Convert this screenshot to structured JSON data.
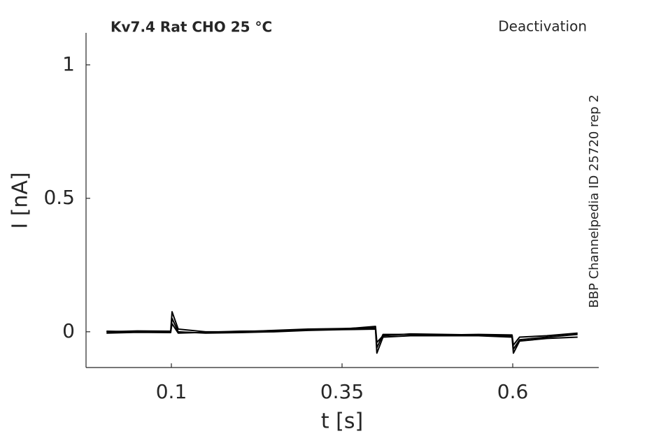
{
  "chart_data": {
    "type": "line",
    "title": "Kv7.4  Rat  CHO  25 °C",
    "subtitle": "Deactivation",
    "annotation": "BBP Channelpedia ID 25720 rep 2",
    "x_label": "t [s]",
    "y_label": "I [nA]",
    "x": [
      0.005,
      0.05,
      0.099,
      0.101,
      0.11,
      0.15,
      0.2,
      0.25,
      0.3,
      0.35,
      0.399,
      0.401,
      0.41,
      0.45,
      0.5,
      0.55,
      0.599,
      0.601,
      0.61,
      0.65,
      0.695
    ],
    "series": [
      {
        "color": "#000000",
        "values": [
          0.0,
          0.003,
          0.002,
          0.075,
          0.01,
          0.0,
          0.0,
          0.005,
          0.01,
          0.012,
          0.015,
          -0.06,
          -0.01,
          -0.01,
          -0.012,
          -0.01,
          -0.012,
          -0.05,
          -0.02,
          -0.015,
          -0.005
        ]
      },
      {
        "color": "#000000",
        "values": [
          -0.005,
          -0.002,
          -0.003,
          0.05,
          0.0,
          -0.005,
          -0.003,
          0.0,
          0.005,
          0.008,
          0.01,
          -0.08,
          -0.02,
          -0.015,
          -0.015,
          -0.015,
          -0.02,
          -0.08,
          -0.035,
          -0.025,
          -0.02
        ]
      },
      {
        "color": "#000000",
        "values": [
          0.002,
          0.0,
          0.0,
          0.03,
          -0.005,
          -0.002,
          0.002,
          0.003,
          0.007,
          0.01,
          0.02,
          -0.04,
          -0.015,
          -0.008,
          -0.01,
          -0.012,
          -0.015,
          -0.065,
          -0.03,
          -0.02,
          -0.01
        ]
      }
    ],
    "xlim": [
      -0.025,
      0.726
    ],
    "ylim": [
      -0.134,
      1.12
    ],
    "xticks": [
      0.1,
      0.35,
      0.6
    ],
    "yticks": [
      0,
      0.5,
      1
    ]
  }
}
